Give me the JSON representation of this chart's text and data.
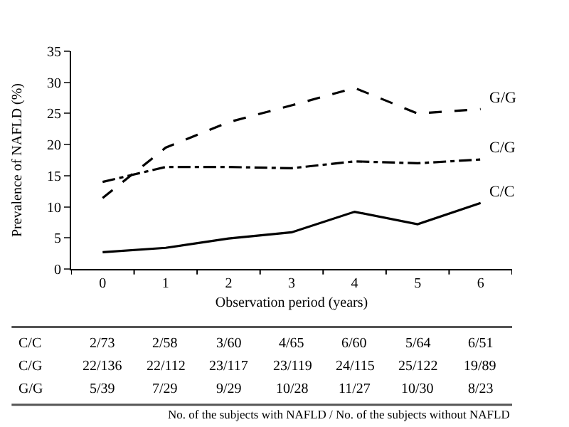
{
  "chart_data": {
    "type": "line",
    "xlabel": "Observation period (years)",
    "ylabel": "Prevalence of NAFLD (%)",
    "categories": [
      "0",
      "1",
      "2",
      "3",
      "4",
      "5",
      "6"
    ],
    "ylim": [
      0,
      35
    ],
    "yticks": [
      0,
      5,
      10,
      15,
      20,
      25,
      30,
      35
    ],
    "legend": false,
    "marker": "none",
    "series": [
      {
        "name": "C/C",
        "color": "#000000",
        "line_style": "solid",
        "values": [
          2.7,
          3.4,
          4.9,
          5.9,
          9.2,
          7.2,
          10.6
        ]
      },
      {
        "name": "C/G",
        "color": "#000000",
        "line_style": "dashdot",
        "values": [
          14.0,
          16.4,
          16.4,
          16.2,
          17.3,
          17.0,
          17.6
        ]
      },
      {
        "name": "G/G",
        "color": "#000000",
        "line_style": "dashed",
        "values": [
          11.4,
          19.5,
          23.6,
          26.3,
          29.1,
          25.0,
          25.7
        ]
      }
    ],
    "annotations": [
      "C/C",
      "2/73",
      "2/58",
      "3/60",
      "4/65",
      "6/60",
      "5/64",
      "6/51",
      "C/G",
      "22/136",
      "22/112",
      "23/117",
      "23/119",
      "24/115",
      "25/122",
      "19/89",
      "G/G",
      "5/39",
      "7/29",
      "9/29",
      "10/28",
      "11/27",
      "10/30",
      "8/23",
      "No. of the subjects with NAFLD / No. of the subjects without NAFLD"
    ]
  }
}
